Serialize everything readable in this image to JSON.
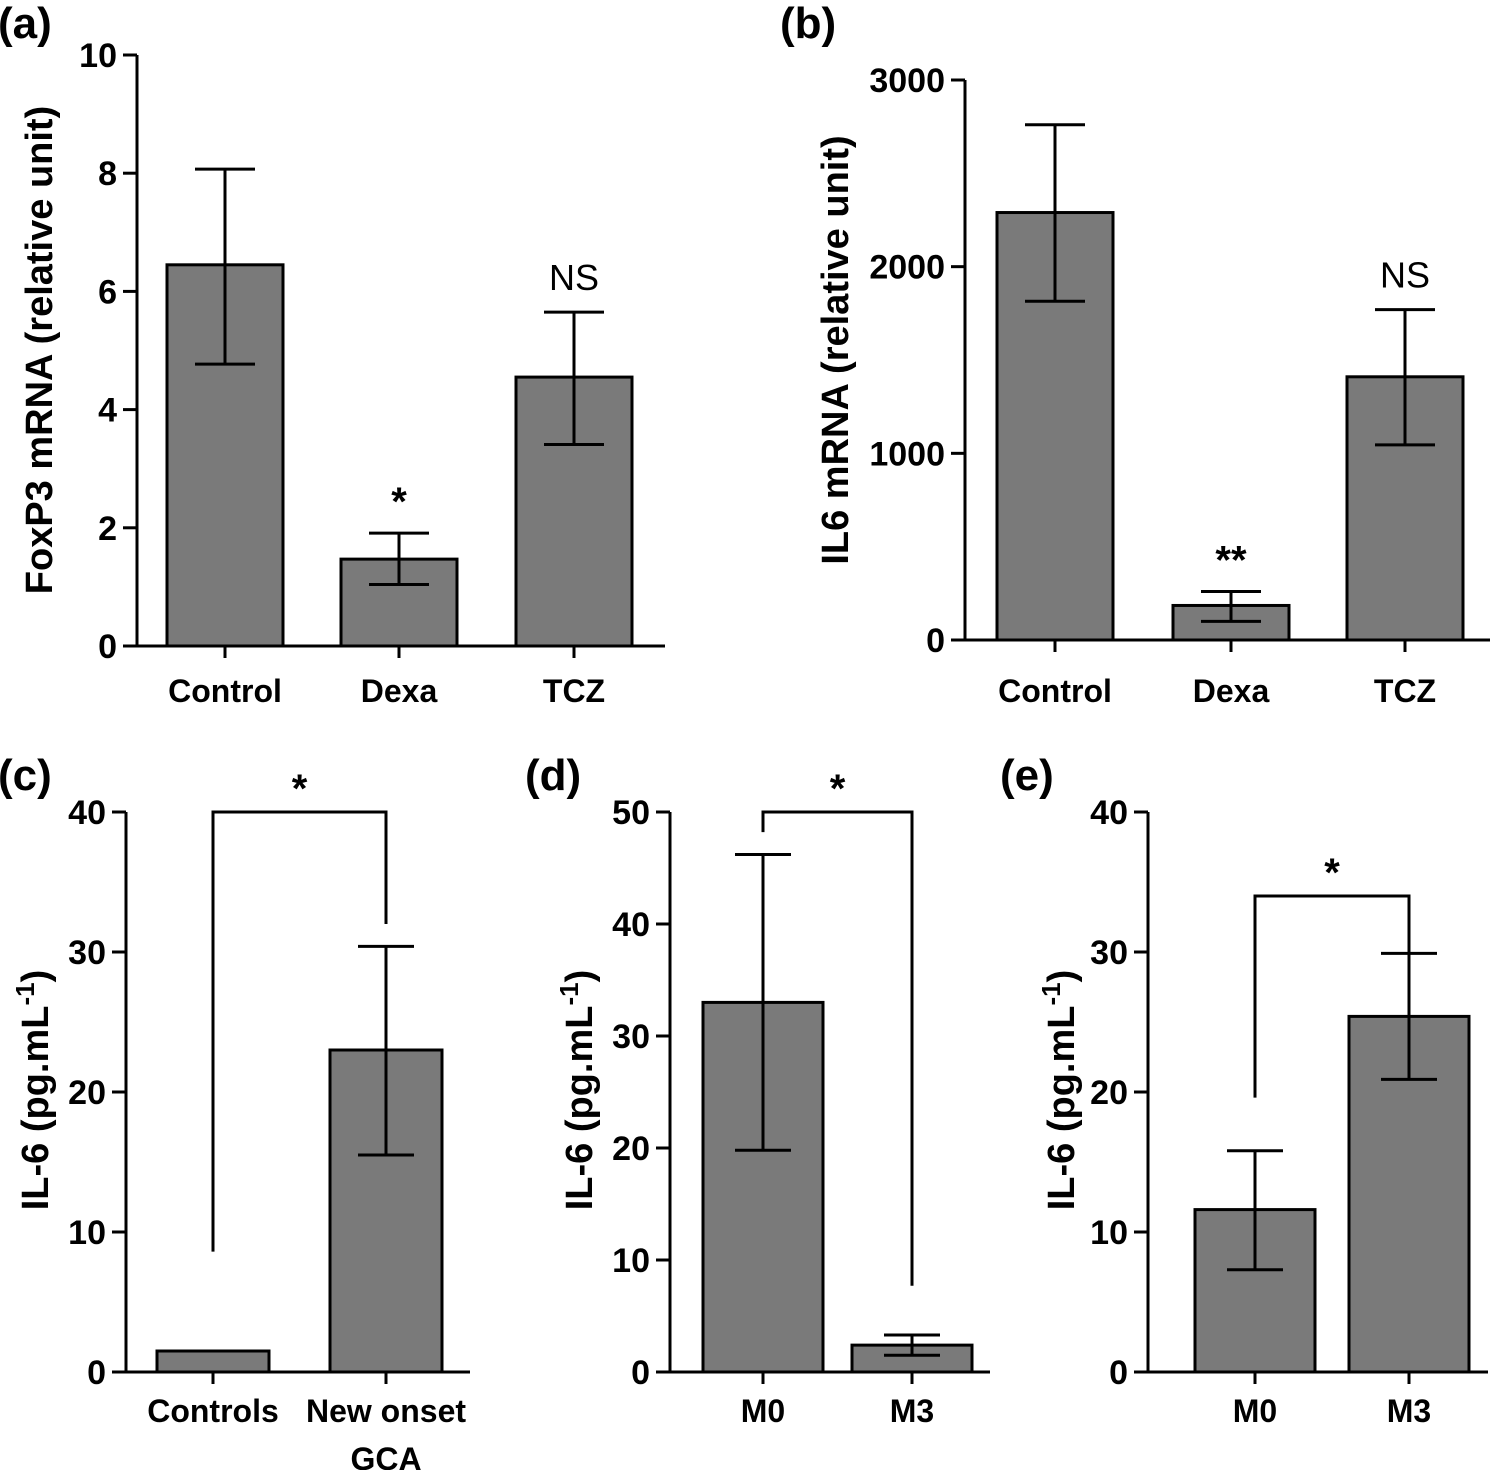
{
  "colors": {
    "bar_fill": "#7a7a7a",
    "stroke": "#000000"
  },
  "chart_data": [
    {
      "panel": "(a)",
      "type": "bar",
      "ylabel": "FoxP3 mRNA (relative unit)",
      "ylim": [
        0,
        10
      ],
      "yticks": [
        0,
        2,
        4,
        6,
        8,
        10
      ],
      "categories": [
        "Control",
        "Dexa",
        "TCZ"
      ],
      "values": [
        6.45,
        1.47,
        4.55
      ],
      "err_low": [
        4.77,
        1.04,
        3.41
      ],
      "err_high": [
        8.07,
        1.91,
        5.65
      ],
      "annotations": [
        {
          "label": "*",
          "category_index": 1
        },
        {
          "label": "NS",
          "category_index": 2
        }
      ]
    },
    {
      "panel": "(b)",
      "type": "bar",
      "ylabel": "IL6 mRNA (relative unit)",
      "ylim": [
        0,
        3000
      ],
      "yticks": [
        0,
        1000,
        2000,
        3000
      ],
      "categories": [
        "Control",
        "Dexa",
        "TCZ"
      ],
      "values": [
        2290,
        185,
        1410
      ],
      "err_low": [
        1815,
        100,
        1045
      ],
      "err_high": [
        2760,
        260,
        1770
      ],
      "annotations": [
        {
          "label": "**",
          "category_index": 1
        },
        {
          "label": "NS",
          "category_index": 2
        }
      ]
    },
    {
      "panel": "(c)",
      "type": "bar",
      "ylabel": "IL-6 (pg.mL-1)",
      "ylim": [
        0,
        40
      ],
      "yticks": [
        0,
        10,
        20,
        30,
        40
      ],
      "categories": [
        "Controls",
        "New onset GCA"
      ],
      "values": [
        1.5,
        23.0
      ],
      "err_low": [
        null,
        15.5
      ],
      "err_high": [
        null,
        30.4
      ],
      "bracket": {
        "label": "*",
        "left_y": 8.6,
        "right_y": 32.0,
        "top_y": 40
      }
    },
    {
      "panel": "(d)",
      "type": "bar",
      "ylabel": "IL-6 (pg.mL-1)",
      "ylim": [
        0,
        50
      ],
      "yticks": [
        0,
        10,
        20,
        30,
        40,
        50
      ],
      "categories": [
        "M0",
        "M3"
      ],
      "values": [
        33.0,
        2.4
      ],
      "err_low": [
        19.8,
        1.5
      ],
      "err_high": [
        46.2,
        3.3
      ],
      "bracket": {
        "label": "*",
        "left_y": 48.2,
        "right_y": 7.7,
        "top_y": 50
      }
    },
    {
      "panel": "(e)",
      "type": "bar",
      "ylabel": "IL-6 (pg.mL-1)",
      "ylim": [
        0,
        40
      ],
      "yticks": [
        0,
        10,
        20,
        30,
        40
      ],
      "categories": [
        "M0",
        "M3"
      ],
      "values": [
        11.6,
        25.4
      ],
      "err_low": [
        7.3,
        20.9
      ],
      "err_high": [
        15.8,
        29.9
      ],
      "bracket": {
        "label": "*",
        "left_y": 19.6,
        "right_y": 29.7,
        "top_y": 34.0
      }
    }
  ]
}
